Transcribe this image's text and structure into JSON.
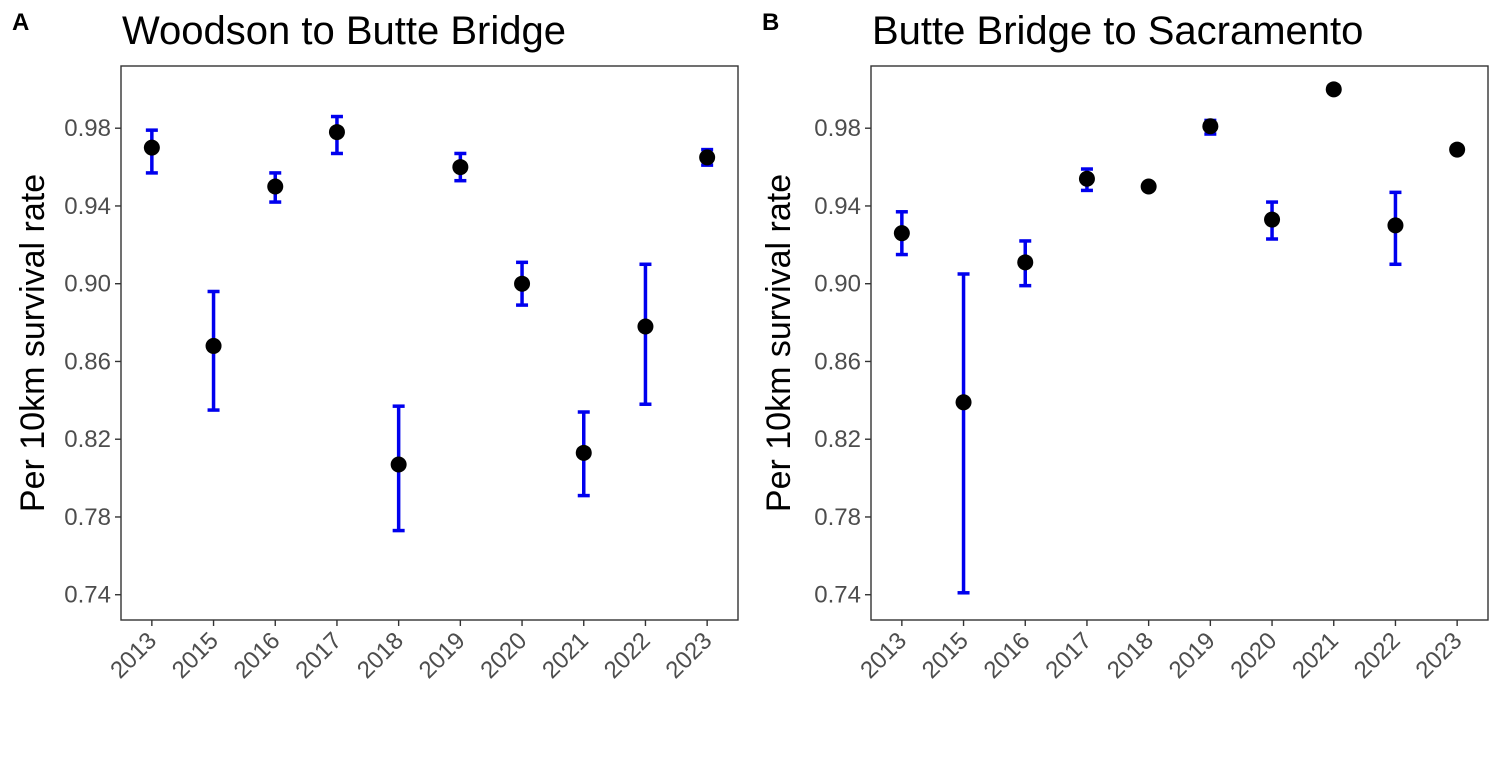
{
  "chart_data": [
    {
      "type": "scatter",
      "panel_label": "A",
      "title": "Woodson to Butte Bridge",
      "xlabel": "",
      "ylabel": "Per 10km survival rate",
      "categories": [
        "2013",
        "2015",
        "2016",
        "2017",
        "2018",
        "2019",
        "2020",
        "2021",
        "2022",
        "2023"
      ],
      "ylim": [
        0.727,
        1.012
      ],
      "yticks": [
        0.74,
        0.78,
        0.82,
        0.86,
        0.9,
        0.94,
        0.98
      ],
      "ytick_labels": [
        "0.74",
        "0.78",
        "0.82",
        "0.86",
        "0.90",
        "0.94",
        "0.98"
      ],
      "grid": false,
      "series": [
        {
          "values": [
            0.97,
            0.868,
            0.95,
            0.978,
            0.807,
            0.96,
            0.9,
            0.813,
            0.878,
            0.965
          ],
          "lower": [
            0.957,
            0.835,
            0.942,
            0.967,
            0.773,
            0.953,
            0.889,
            0.791,
            0.838,
            0.961
          ],
          "upper": [
            0.979,
            0.896,
            0.957,
            0.986,
            0.837,
            0.967,
            0.911,
            0.834,
            0.91,
            0.969
          ],
          "point_color": "#000000",
          "errorbar_color": "#0000ee"
        }
      ]
    },
    {
      "type": "scatter",
      "panel_label": "B",
      "title": "Butte Bridge to Sacramento",
      "xlabel": "",
      "ylabel": "Per 10km survival rate",
      "categories": [
        "2013",
        "2015",
        "2016",
        "2017",
        "2018",
        "2019",
        "2020",
        "2021",
        "2022",
        "2023"
      ],
      "ylim": [
        0.727,
        1.012
      ],
      "yticks": [
        0.74,
        0.78,
        0.82,
        0.86,
        0.9,
        0.94,
        0.98
      ],
      "ytick_labels": [
        "0.74",
        "0.78",
        "0.82",
        "0.86",
        "0.90",
        "0.94",
        "0.98"
      ],
      "grid": false,
      "series": [
        {
          "values": [
            0.926,
            0.839,
            0.911,
            0.954,
            0.95,
            0.981,
            0.933,
            1.0,
            0.93,
            0.969
          ],
          "lower": [
            0.915,
            0.741,
            0.899,
            0.948,
            0.95,
            0.977,
            0.923,
            1.0,
            0.91,
            0.968
          ],
          "upper": [
            0.937,
            0.905,
            0.922,
            0.959,
            0.95,
            0.984,
            0.942,
            1.0,
            0.947,
            0.97
          ],
          "point_color": "#000000",
          "errorbar_color": "#0000ee"
        }
      ]
    }
  ]
}
